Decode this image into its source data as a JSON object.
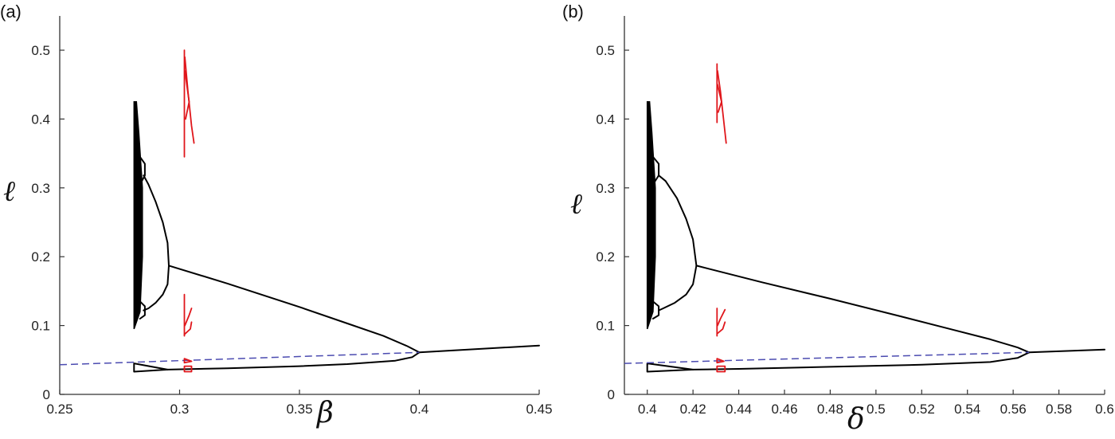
{
  "chart_data": [
    {
      "type": "line",
      "panel_label": "(a)",
      "xlabel": "β",
      "ylabel": "ℓ",
      "xlim": [
        0.25,
        0.45
      ],
      "ylim": [
        0,
        0.55
      ],
      "xticks": [
        0.25,
        0.3,
        0.35,
        0.4,
        0.45
      ],
      "xtick_labels": [
        "0.25",
        "0.3",
        "0.35",
        "0.4",
        "0.45"
      ],
      "yticks": [
        0,
        0.1,
        0.2,
        0.3,
        0.4,
        0.5
      ],
      "ytick_labels": [
        "0",
        "0.1",
        "0.2",
        "0.3",
        "0.4",
        "0.5"
      ],
      "grid": false,
      "series": [
        {
          "name": "chaotic-band",
          "color": "#000000",
          "style": "fill",
          "points": [
            [
              0.281,
              0.095
            ],
            [
              0.2835,
              0.12
            ],
            [
              0.2845,
              0.2
            ],
            [
              0.2845,
              0.3
            ],
            [
              0.283,
              0.38
            ],
            [
              0.282,
              0.425
            ],
            [
              0.281,
              0.425
            ]
          ]
        },
        {
          "name": "period4-loop-upper",
          "color": "#000000",
          "style": "solid",
          "points": [
            [
              0.2835,
              0.345
            ],
            [
              0.2855,
              0.335
            ],
            [
              0.2855,
              0.318
            ],
            [
              0.2835,
              0.305
            ]
          ]
        },
        {
          "name": "period4-loop-lower",
          "color": "#000000",
          "style": "solid",
          "points": [
            [
              0.2835,
              0.135
            ],
            [
              0.2855,
              0.128
            ],
            [
              0.2855,
              0.115
            ],
            [
              0.2835,
              0.11
            ]
          ]
        },
        {
          "name": "period2-upper",
          "color": "#000000",
          "style": "solid",
          "points": [
            [
              0.2955,
              0.187
            ],
            [
              0.295,
              0.22
            ],
            [
              0.293,
              0.25
            ],
            [
              0.29,
              0.28
            ],
            [
              0.287,
              0.305
            ],
            [
              0.285,
              0.318
            ]
          ]
        },
        {
          "name": "period2-lower",
          "color": "#000000",
          "style": "solid",
          "points": [
            [
              0.2955,
              0.187
            ],
            [
              0.295,
              0.16
            ],
            [
              0.293,
              0.145
            ],
            [
              0.29,
              0.133
            ],
            [
              0.287,
              0.125
            ],
            [
              0.285,
              0.122
            ]
          ]
        },
        {
          "name": "upper-branch",
          "color": "#000000",
          "style": "solid",
          "points": [
            [
              0.2955,
              0.187
            ],
            [
              0.32,
              0.161
            ],
            [
              0.35,
              0.127
            ],
            [
              0.37,
              0.103
            ],
            [
              0.385,
              0.085
            ],
            [
              0.395,
              0.07
            ],
            [
              0.4,
              0.061
            ]
          ]
        },
        {
          "name": "lower-branch",
          "color": "#000000",
          "style": "solid",
          "points": [
            [
              0.4,
              0.061
            ],
            [
              0.397,
              0.054
            ],
            [
              0.39,
              0.049
            ],
            [
              0.37,
              0.044
            ],
            [
              0.35,
              0.041
            ],
            [
              0.32,
              0.038
            ],
            [
              0.295,
              0.036
            ]
          ]
        },
        {
          "name": "small-triangle",
          "color": "#000000",
          "style": "solid",
          "points": [
            [
              0.295,
              0.036
            ],
            [
              0.281,
              0.045
            ],
            [
              0.281,
              0.033
            ],
            [
              0.295,
              0.036
            ]
          ]
        },
        {
          "name": "stable-equilibrium",
          "color": "#000000",
          "style": "solid",
          "points": [
            [
              0.4,
              0.061
            ],
            [
              0.45,
              0.071
            ]
          ]
        },
        {
          "name": "unstable-equilibrium",
          "color": "#4b4bb0",
          "style": "dashed",
          "points": [
            [
              0.25,
              0.043
            ],
            [
              0.4,
              0.061
            ]
          ]
        },
        {
          "name": "red-upper-a",
          "color": "#e0161b",
          "style": "solid",
          "points": [
            [
              0.302,
              0.345
            ],
            [
              0.302,
              0.5
            ]
          ]
        },
        {
          "name": "red-upper-b",
          "color": "#e0161b",
          "style": "solid",
          "points": [
            [
              0.3022,
              0.49
            ],
            [
              0.3035,
              0.44
            ],
            [
              0.305,
              0.39
            ],
            [
              0.306,
              0.365
            ]
          ]
        },
        {
          "name": "red-upper-c",
          "color": "#e0161b",
          "style": "solid",
          "points": [
            [
              0.3022,
              0.47
            ],
            [
              0.304,
              0.425
            ],
            [
              0.3025,
              0.4
            ]
          ]
        },
        {
          "name": "red-mid-a",
          "color": "#e0161b",
          "style": "solid",
          "points": [
            [
              0.302,
              0.085
            ],
            [
              0.302,
              0.145
            ]
          ]
        },
        {
          "name": "red-mid-b",
          "color": "#e0161b",
          "style": "solid",
          "points": [
            [
              0.302,
              0.087
            ],
            [
              0.3045,
              0.095
            ],
            [
              0.305,
              0.105
            ]
          ]
        },
        {
          "name": "red-mid-c",
          "color": "#e0161b",
          "style": "solid",
          "points": [
            [
              0.3022,
              0.1
            ],
            [
              0.304,
              0.115
            ],
            [
              0.305,
              0.125
            ]
          ]
        },
        {
          "name": "red-low-a",
          "color": "#e0161b",
          "style": "solid",
          "points": [
            [
              0.302,
              0.046
            ],
            [
              0.302,
              0.052
            ],
            [
              0.305,
              0.048
            ],
            [
              0.302,
              0.046
            ]
          ]
        },
        {
          "name": "red-low-b",
          "color": "#e0161b",
          "style": "solid",
          "points": [
            [
              0.302,
              0.033
            ],
            [
              0.302,
              0.041
            ],
            [
              0.305,
              0.041
            ],
            [
              0.305,
              0.033
            ],
            [
              0.302,
              0.033
            ]
          ]
        }
      ]
    },
    {
      "type": "line",
      "panel_label": "(b)",
      "xlabel": "δ",
      "ylabel": "ℓ",
      "xlim": [
        0.39,
        0.6
      ],
      "ylim": [
        0,
        0.55
      ],
      "xticks": [
        0.4,
        0.42,
        0.44,
        0.46,
        0.48,
        0.5,
        0.52,
        0.54,
        0.56,
        0.58,
        0.6
      ],
      "xtick_labels": [
        "0.4",
        "0.42",
        "0.44",
        "0.46",
        "0.48",
        "0.5",
        "0.52",
        "0.54",
        "0.56",
        "0.58",
        "0.6"
      ],
      "yticks": [
        0,
        0.1,
        0.2,
        0.3,
        0.4,
        0.5
      ],
      "ytick_labels": [
        "0",
        "0.1",
        "0.2",
        "0.3",
        "0.4",
        "0.5"
      ],
      "grid": false,
      "series": [
        {
          "name": "chaotic-band",
          "color": "#000000",
          "style": "fill",
          "points": [
            [
              0.4,
              0.095
            ],
            [
              0.4025,
              0.12
            ],
            [
              0.4035,
              0.2
            ],
            [
              0.4035,
              0.3
            ],
            [
              0.402,
              0.38
            ],
            [
              0.401,
              0.425
            ],
            [
              0.4,
              0.425
            ]
          ]
        },
        {
          "name": "period4-loop-upper",
          "color": "#000000",
          "style": "solid",
          "points": [
            [
              0.4025,
              0.345
            ],
            [
              0.405,
              0.335
            ],
            [
              0.405,
              0.318
            ],
            [
              0.4025,
              0.305
            ]
          ]
        },
        {
          "name": "period4-loop-lower",
          "color": "#000000",
          "style": "solid",
          "points": [
            [
              0.4025,
              0.135
            ],
            [
              0.405,
              0.128
            ],
            [
              0.405,
              0.115
            ],
            [
              0.4025,
              0.11
            ]
          ]
        },
        {
          "name": "period2-upper",
          "color": "#000000",
          "style": "solid",
          "points": [
            [
              0.4215,
              0.187
            ],
            [
              0.42,
              0.225
            ],
            [
              0.417,
              0.255
            ],
            [
              0.413,
              0.285
            ],
            [
              0.408,
              0.31
            ],
            [
              0.405,
              0.318
            ]
          ]
        },
        {
          "name": "period2-lower",
          "color": "#000000",
          "style": "solid",
          "points": [
            [
              0.4215,
              0.187
            ],
            [
              0.42,
              0.16
            ],
            [
              0.417,
              0.145
            ],
            [
              0.412,
              0.133
            ],
            [
              0.407,
              0.125
            ],
            [
              0.405,
              0.122
            ]
          ]
        },
        {
          "name": "upper-branch",
          "color": "#000000",
          "style": "solid",
          "points": [
            [
              0.4215,
              0.187
            ],
            [
              0.45,
              0.163
            ],
            [
              0.48,
              0.139
            ],
            [
              0.51,
              0.114
            ],
            [
              0.53,
              0.097
            ],
            [
              0.55,
              0.08
            ],
            [
              0.562,
              0.068
            ],
            [
              0.567,
              0.061
            ]
          ]
        },
        {
          "name": "lower-branch",
          "color": "#000000",
          "style": "solid",
          "points": [
            [
              0.567,
              0.061
            ],
            [
              0.562,
              0.053
            ],
            [
              0.55,
              0.047
            ],
            [
              0.52,
              0.043
            ],
            [
              0.48,
              0.04
            ],
            [
              0.44,
              0.037
            ],
            [
              0.42,
              0.036
            ]
          ]
        },
        {
          "name": "small-triangle",
          "color": "#000000",
          "style": "solid",
          "points": [
            [
              0.42,
              0.036
            ],
            [
              0.4,
              0.045
            ],
            [
              0.4,
              0.033
            ],
            [
              0.42,
              0.036
            ]
          ]
        },
        {
          "name": "stable-equilibrium",
          "color": "#000000",
          "style": "solid",
          "points": [
            [
              0.567,
              0.061
            ],
            [
              0.6,
              0.065
            ]
          ]
        },
        {
          "name": "unstable-equilibrium",
          "color": "#4b4bb0",
          "style": "dashed",
          "points": [
            [
              0.39,
              0.045
            ],
            [
              0.567,
              0.061
            ]
          ]
        },
        {
          "name": "red-upper-a",
          "color": "#e0161b",
          "style": "solid",
          "points": [
            [
              0.4305,
              0.395
            ],
            [
              0.4305,
              0.48
            ]
          ]
        },
        {
          "name": "red-upper-b",
          "color": "#e0161b",
          "style": "solid",
          "points": [
            [
              0.4307,
              0.47
            ],
            [
              0.432,
              0.44
            ],
            [
              0.433,
              0.41
            ],
            [
              0.4345,
              0.365
            ]
          ]
        },
        {
          "name": "red-upper-c",
          "color": "#e0161b",
          "style": "solid",
          "points": [
            [
              0.4307,
              0.45
            ],
            [
              0.4325,
              0.425
            ],
            [
              0.431,
              0.41
            ]
          ]
        },
        {
          "name": "red-mid-a",
          "color": "#e0161b",
          "style": "solid",
          "points": [
            [
              0.4305,
              0.085
            ],
            [
              0.4305,
              0.125
            ]
          ]
        },
        {
          "name": "red-mid-b",
          "color": "#e0161b",
          "style": "solid",
          "points": [
            [
              0.4305,
              0.088
            ],
            [
              0.433,
              0.095
            ],
            [
              0.434,
              0.105
            ]
          ]
        },
        {
          "name": "red-mid-c",
          "color": "#e0161b",
          "style": "solid",
          "points": [
            [
              0.4307,
              0.1
            ],
            [
              0.432,
              0.11
            ],
            [
              0.434,
              0.123
            ]
          ]
        },
        {
          "name": "red-low-a",
          "color": "#e0161b",
          "style": "solid",
          "points": [
            [
              0.4305,
              0.046
            ],
            [
              0.4305,
              0.052
            ],
            [
              0.4335,
              0.048
            ],
            [
              0.4305,
              0.046
            ]
          ]
        },
        {
          "name": "red-low-b",
          "color": "#e0161b",
          "style": "solid",
          "points": [
            [
              0.4305,
              0.033
            ],
            [
              0.4305,
              0.041
            ],
            [
              0.434,
              0.041
            ],
            [
              0.434,
              0.033
            ],
            [
              0.4305,
              0.033
            ]
          ]
        }
      ]
    }
  ]
}
